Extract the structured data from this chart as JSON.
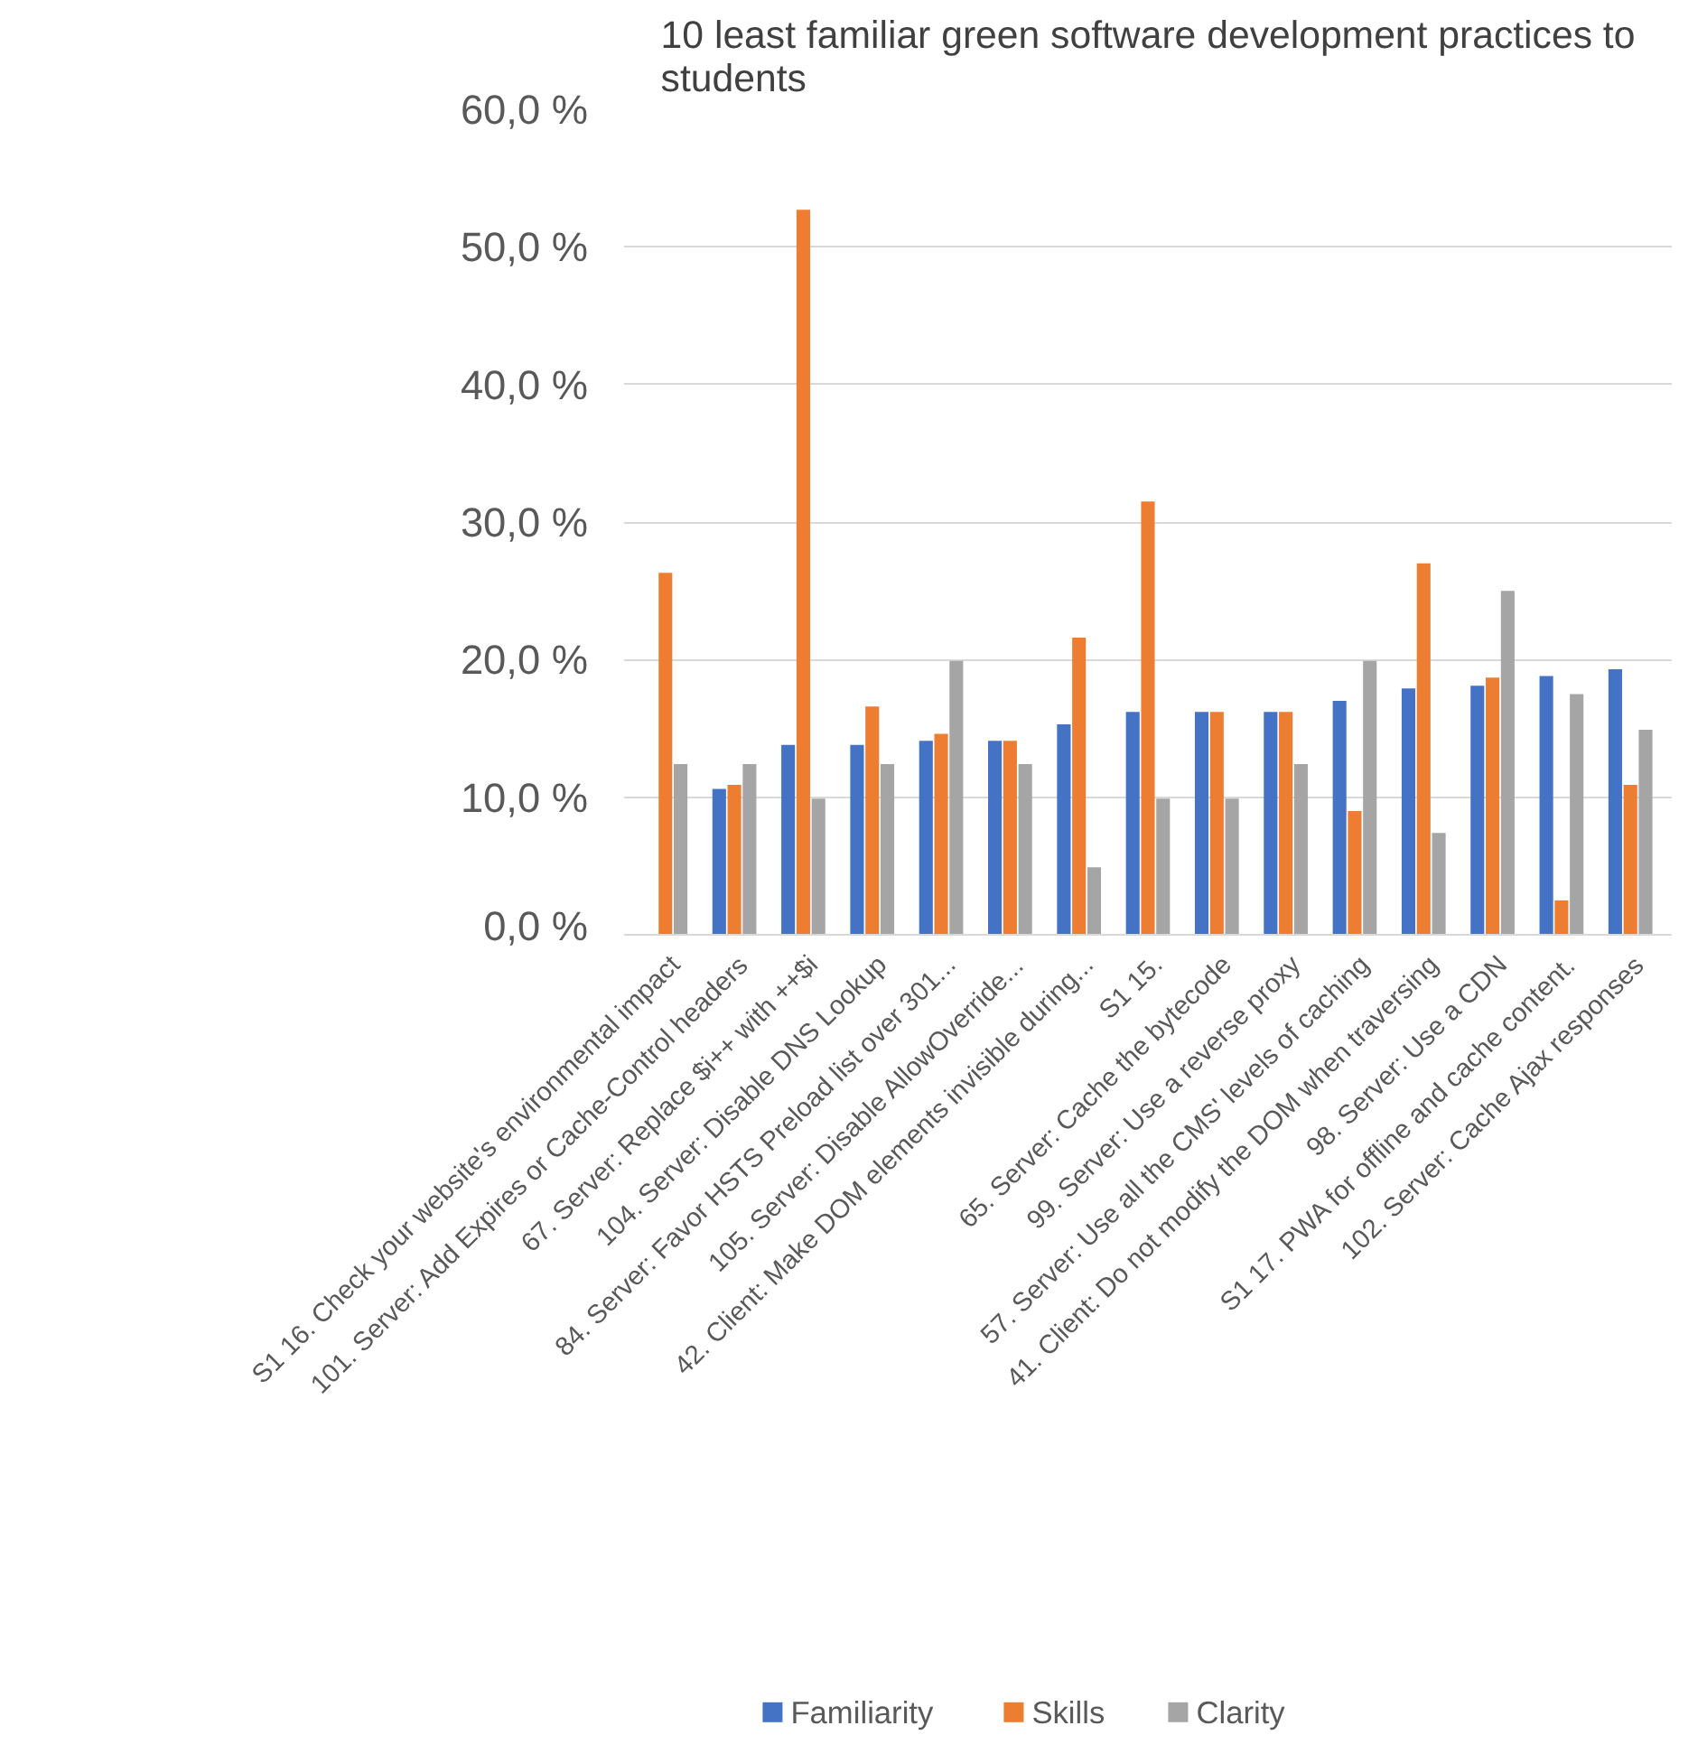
{
  "chart_data": {
    "type": "bar",
    "title": "10 least familiar green software development practices to students",
    "categories": [
      "S1 16. Check your website's environmental impact",
      "101. Server: Add Expires or Cache-Control headers",
      "67. Server: Replace $i++ with ++$i",
      "104. Server: Disable DNS Lookup",
      "84. Server: Favor HSTS Preload list over 301...",
      "105. Server: Disable AllowOverride...",
      "42. Client: Make DOM elements invisible during...",
      "S1 15.",
      "65. Server: Cache the bytecode",
      "99. Server: Use a reverse proxy",
      "57. Server: Use all the CMS' levels of caching",
      "41. Client: Do not modify the DOM when traversing",
      "98. Server: Use a CDN",
      "S1 17. PWA for offline and cache content.",
      "102. Server: Cache Ajax responses"
    ],
    "series": [
      {
        "name": "Familiarity",
        "color": "#4472c4",
        "values": [
          0,
          10.6,
          13.8,
          13.8,
          14.1,
          14.1,
          15.3,
          16.2,
          16.2,
          16.2,
          17.0,
          17.9,
          18.1,
          18.8,
          19.3
        ]
      },
      {
        "name": "Skills",
        "color": "#ed7d31",
        "values": [
          26.3,
          10.9,
          52.7,
          16.6,
          14.6,
          14.1,
          21.6,
          31.5,
          16.2,
          16.2,
          9.0,
          27.0,
          18.7,
          2.5,
          10.9
        ]
      },
      {
        "name": "Clarity",
        "color": "#a5a5a5",
        "values": [
          12.4,
          12.4,
          9.9,
          12.4,
          19.9,
          12.4,
          4.9,
          9.9,
          9.9,
          12.4,
          19.9,
          7.4,
          25.0,
          17.5,
          14.9
        ]
      }
    ],
    "ylim": [
      0,
      60
    ],
    "yticks": [
      {
        "value": 0,
        "label": "0,0 %"
      },
      {
        "value": 10,
        "label": "10,0 %"
      },
      {
        "value": 20,
        "label": "20,0 %"
      },
      {
        "value": 30,
        "label": "30,0 %"
      },
      {
        "value": 40,
        "label": "40,0 %"
      },
      {
        "value": 50,
        "label": "50,0 %"
      },
      {
        "value": 60,
        "label": "60,0 %"
      }
    ],
    "grid": "y",
    "legend": "bottom"
  }
}
